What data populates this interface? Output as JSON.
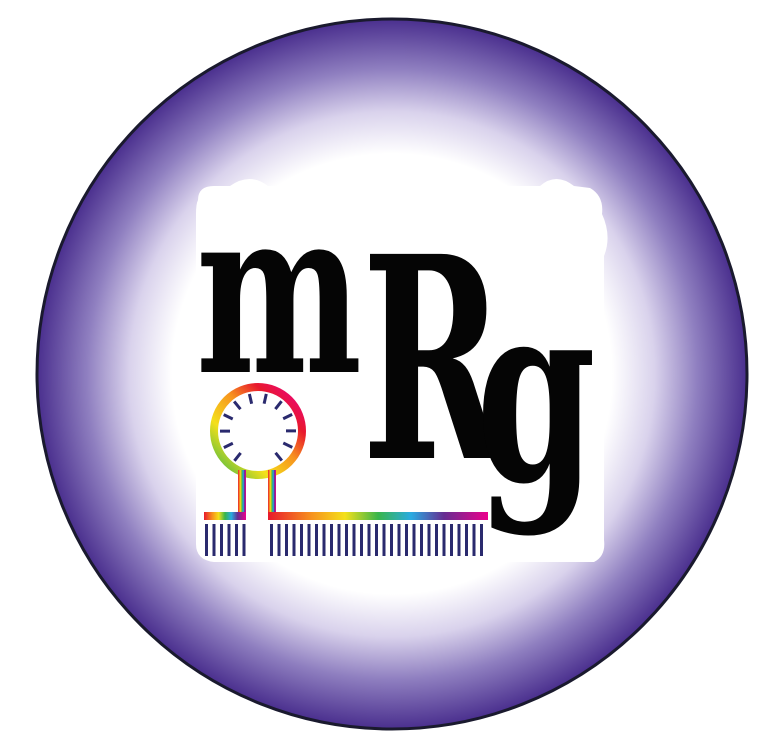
{
  "logo": {
    "letters": {
      "m": "m",
      "r": "R",
      "g": "g"
    },
    "colors": {
      "ring_outer": "#4a2f8e",
      "ring_mid": "#8f7fc0",
      "ring_inner": "#ffffff",
      "outline": "#1a1a2e",
      "letter_fill": "#050505",
      "base_tick": "#2a2a6e",
      "hairpin_ticks": "#2a2a6e"
    },
    "hairpin_spectrum": [
      "#e8192c",
      "#f7931e",
      "#f4e01a",
      "#39b54a",
      "#29abe2",
      "#662d91",
      "#ec008c"
    ]
  }
}
